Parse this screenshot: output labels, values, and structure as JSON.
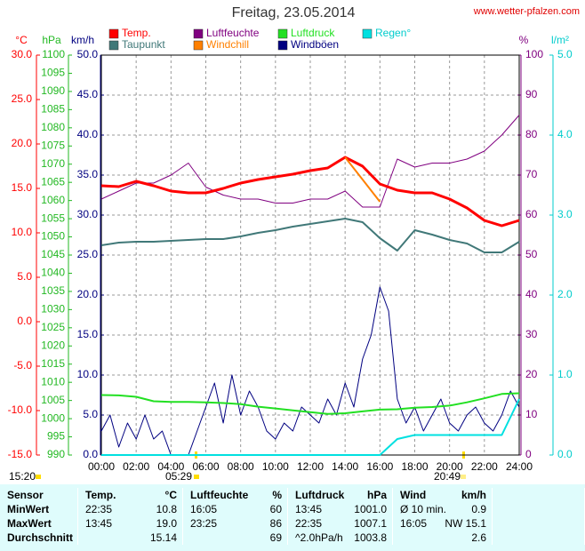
{
  "header": {
    "title": "Freitag, 23.05.2014",
    "url": "www.wetter-pfalzen.com"
  },
  "chart_data": {
    "type": "line",
    "x": [
      0,
      1,
      2,
      3,
      4,
      5,
      6,
      7,
      8,
      9,
      10,
      11,
      12,
      13,
      14,
      15,
      16,
      17,
      18,
      19,
      20,
      21,
      22,
      23,
      24
    ],
    "xlim": [
      0,
      24
    ],
    "xticks": [
      {
        "value": 0,
        "label": "00:00"
      },
      {
        "value": 2,
        "label": "02:00"
      },
      {
        "value": 4,
        "label": "04:00"
      },
      {
        "value": 6,
        "label": "06:00"
      },
      {
        "value": 8,
        "label": "08:00"
      },
      {
        "value": 10,
        "label": "10:00"
      },
      {
        "value": 12,
        "label": "12:00"
      },
      {
        "value": 14,
        "label": "14:00"
      },
      {
        "value": 16,
        "label": "16:00"
      },
      {
        "value": 18,
        "label": "18:00"
      },
      {
        "value": 20,
        "label": "20:00"
      },
      {
        "value": 22,
        "label": "22:00"
      },
      {
        "value": 24,
        "label": "24:00"
      }
    ],
    "grid": true,
    "axes": [
      {
        "label": "°C",
        "color": "#ff0000",
        "lim": [
          -15,
          30
        ],
        "ticks": [
          {
            "value": 30,
            "label": "30.0"
          },
          {
            "value": 25,
            "label": "25.0"
          },
          {
            "value": 20,
            "label": "20.0"
          },
          {
            "value": 15,
            "label": "15.0"
          },
          {
            "value": 10,
            "label": "10.0"
          },
          {
            "value": 5,
            "label": "5.0"
          },
          {
            "value": 0,
            "label": "0.0"
          },
          {
            "value": -5,
            "label": "-5.0"
          },
          {
            "value": -10,
            "label": "-10.0"
          },
          {
            "value": -15,
            "label": "-15.0"
          }
        ]
      },
      {
        "label": "hPa",
        "color": "#22b822",
        "lim": [
          990,
          1100
        ],
        "ticks": [
          1100,
          1095,
          1090,
          1085,
          1080,
          1075,
          1070,
          1065,
          1060,
          1055,
          1050,
          1045,
          1040,
          1035,
          1030,
          1025,
          1020,
          1015,
          1010,
          1005,
          1000,
          995,
          990
        ]
      },
      {
        "label": "km/h",
        "color": "#000080",
        "lim": [
          0,
          50
        ],
        "ticks": [
          {
            "value": 50,
            "label": "50.0"
          },
          {
            "value": 45,
            "label": "45.0"
          },
          {
            "value": 40,
            "label": "40.0"
          },
          {
            "value": 35,
            "label": "35.0"
          },
          {
            "value": 30,
            "label": "30.0"
          },
          {
            "value": 25,
            "label": "25.0"
          },
          {
            "value": 20,
            "label": "20.0"
          },
          {
            "value": 15,
            "label": "15.0"
          },
          {
            "value": 10,
            "label": "10.0"
          },
          {
            "value": 5,
            "label": "5.0"
          },
          {
            "value": 0,
            "label": "0.0"
          }
        ]
      },
      {
        "label": "%",
        "color": "#800080",
        "lim": [
          0,
          100
        ],
        "ticks": [
          100,
          90,
          80,
          70,
          60,
          50,
          40,
          30,
          20,
          10,
          0
        ]
      },
      {
        "label": "l/m²",
        "color": "#00cccc",
        "lim": [
          0,
          5
        ],
        "ticks": [
          {
            "value": 5,
            "label": "5.0"
          },
          {
            "value": 4,
            "label": "4.0"
          },
          {
            "value": 3,
            "label": "3.0"
          },
          {
            "value": 2,
            "label": "2.0"
          },
          {
            "value": 1,
            "label": "1.0"
          },
          {
            "value": 0,
            "label": "0.0"
          }
        ]
      }
    ],
    "series": [
      {
        "name": "Temp.",
        "color": "#ff0000",
        "axis": 0,
        "width": 3,
        "values": [
          15.3,
          15.2,
          15.8,
          15.3,
          14.7,
          14.5,
          14.5,
          15.0,
          15.6,
          16.0,
          16.3,
          16.6,
          17.0,
          17.3,
          18.5,
          17.5,
          15.5,
          14.8,
          14.5,
          14.5,
          13.8,
          12.8,
          11.4,
          10.8,
          11.4
        ]
      },
      {
        "name": "Taupunkt",
        "color": "#407878",
        "axis": 0,
        "width": 2,
        "values": [
          8.6,
          8.9,
          9.0,
          9.0,
          9.1,
          9.2,
          9.3,
          9.3,
          9.6,
          10.0,
          10.3,
          10.7,
          11.0,
          11.3,
          11.6,
          11.2,
          9.4,
          8.0,
          10.3,
          9.8,
          9.2,
          8.8,
          7.8,
          7.8,
          9.0
        ]
      },
      {
        "name": "Luftfeuchte",
        "color": "#800080",
        "axis": 3,
        "width": 1,
        "values": [
          64,
          66,
          68,
          68,
          70,
          73,
          67,
          65,
          64,
          64,
          63,
          63,
          64,
          64,
          66,
          62,
          62,
          74,
          72,
          73,
          73,
          74,
          76,
          80,
          85
        ]
      },
      {
        "name": "Windchill",
        "color": "#ff8000",
        "axis": 0,
        "width": 2,
        "values": [
          null,
          null,
          null,
          null,
          null,
          null,
          null,
          null,
          null,
          null,
          null,
          null,
          null,
          null,
          18.5,
          16.0,
          13.5,
          null,
          null,
          null,
          null,
          null,
          null,
          null,
          null
        ]
      },
      {
        "name": "Luftdruck",
        "color": "#22e022",
        "axis": 1,
        "width": 2,
        "values": [
          1006.5,
          1006.4,
          1006.0,
          1004.8,
          1004.6,
          1004.6,
          1004.5,
          1004.3,
          1004.0,
          1003.3,
          1002.8,
          1002.3,
          1001.8,
          1001.3,
          1001.5,
          1002.0,
          1002.5,
          1002.6,
          1003.0,
          1003.2,
          1003.6,
          1004.5,
          1005.6,
          1006.8,
          1007.0
        ]
      },
      {
        "name": "Windböen",
        "color": "#000080",
        "axis": 2,
        "width": 1,
        "x": [
          0,
          0.5,
          1,
          1.5,
          2,
          2.5,
          3,
          3.5,
          4,
          4.5,
          5,
          5.5,
          6,
          6.5,
          7,
          7.5,
          8,
          8.5,
          9,
          9.5,
          10,
          10.5,
          11,
          11.5,
          12,
          12.5,
          13,
          13.5,
          14,
          14.5,
          15,
          15.5,
          16,
          16.5,
          17,
          17.5,
          18,
          18.5,
          19,
          19.5,
          20,
          20.5,
          21,
          21.5,
          22,
          22.5,
          23,
          23.5,
          24
        ],
        "values": [
          3,
          5,
          1,
          4,
          2,
          5,
          2,
          3,
          0,
          0,
          0,
          3,
          6,
          9,
          4,
          10,
          5,
          8,
          6,
          3,
          2,
          4,
          3,
          6,
          5,
          4,
          7,
          5,
          9,
          6,
          12,
          15,
          21,
          18,
          7,
          4,
          6,
          3,
          5,
          7,
          4,
          3,
          5,
          6,
          4,
          3,
          5,
          8,
          6
        ]
      },
      {
        "name": "Regen°",
        "color": "#00e0e0",
        "axis": 4,
        "width": 2,
        "values": [
          0,
          0,
          0,
          0,
          0,
          0,
          0,
          0,
          0,
          0,
          0,
          0,
          0,
          0,
          0,
          0,
          0,
          0.2,
          0.25,
          0.25,
          0.25,
          0.25,
          0.25,
          0.25,
          0.7
        ]
      }
    ]
  },
  "annotations": {
    "time": "15:20",
    "sunrise": "05:29",
    "sunset": "20:49"
  },
  "table": {
    "header": [
      "Sensor",
      "Temp.",
      "°C",
      "Luftfeuchte",
      "%",
      "Luftdruck",
      "hPa",
      "Wind",
      "km/h"
    ],
    "rows": [
      [
        "MinWert",
        "22:35",
        "10.8",
        "16:05",
        "60",
        "13:45",
        "1001.0",
        "Ø 10 min.",
        "0.9"
      ],
      [
        "MaxWert",
        "13:45",
        "19.0",
        "23:25",
        "86",
        "22:35",
        "1007.1",
        "16:05",
        "NW 15.1"
      ],
      [
        "Durchschnitt",
        null,
        "15.14",
        null,
        "69",
        "^2.0hPa/h",
        "1003.8",
        null,
        "2.6"
      ]
    ]
  }
}
